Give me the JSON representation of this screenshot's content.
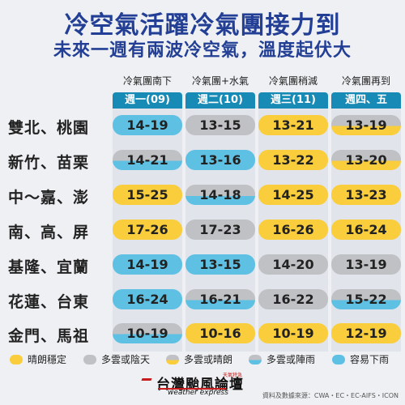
{
  "title": "冷空氣活躍冷氣團接力到",
  "subtitle": "未來一週有兩波冷空氣，溫度起伏大",
  "columns": [
    {
      "phase": "冷氣團南下",
      "day": "週一(09)"
    },
    {
      "phase": "冷氣團+水氣",
      "day": "週二(10)"
    },
    {
      "phase": "冷氣團稍減",
      "day": "週三(11)"
    },
    {
      "phase": "冷氣團再到",
      "day": "週四、五"
    }
  ],
  "rows": [
    {
      "location": "雙北、桃園",
      "cells": [
        {
          "temp": "14-19",
          "weather": "rain_easy"
        },
        {
          "temp": "13-15",
          "weather": "cloudy_overcast"
        },
        {
          "temp": "13-21",
          "weather": "sunny"
        },
        {
          "temp": "13-19",
          "weather": "cloudy_sunny"
        }
      ]
    },
    {
      "location": "新竹、苗栗",
      "cells": [
        {
          "temp": "14-21",
          "weather": "cloudy_showers"
        },
        {
          "temp": "13-16",
          "weather": "rain_easy"
        },
        {
          "temp": "13-22",
          "weather": "sunny"
        },
        {
          "temp": "13-20",
          "weather": "cloudy_sunny"
        }
      ]
    },
    {
      "location": "中～嘉、澎",
      "cells": [
        {
          "temp": "15-25",
          "weather": "sunny"
        },
        {
          "temp": "14-18",
          "weather": "cloudy_showers"
        },
        {
          "temp": "14-25",
          "weather": "sunny"
        },
        {
          "temp": "13-23",
          "weather": "sunny"
        }
      ]
    },
    {
      "location": "南、高、屏",
      "cells": [
        {
          "temp": "17-26",
          "weather": "sunny"
        },
        {
          "temp": "17-23",
          "weather": "cloudy_overcast"
        },
        {
          "temp": "16-26",
          "weather": "sunny"
        },
        {
          "temp": "16-24",
          "weather": "sunny"
        }
      ]
    },
    {
      "location": "基隆、宜蘭",
      "cells": [
        {
          "temp": "14-19",
          "weather": "rain_easy"
        },
        {
          "temp": "13-15",
          "weather": "rain_easy"
        },
        {
          "temp": "14-20",
          "weather": "cloudy_overcast"
        },
        {
          "temp": "13-19",
          "weather": "cloudy_overcast"
        }
      ]
    },
    {
      "location": "花蓮、台東",
      "cells": [
        {
          "temp": "16-24",
          "weather": "rain_easy"
        },
        {
          "temp": "16-21",
          "weather": "cloudy_showers"
        },
        {
          "temp": "16-22",
          "weather": "cloudy_overcast"
        },
        {
          "temp": "15-22",
          "weather": "cloudy_showers"
        }
      ]
    },
    {
      "location": "金門、馬祖",
      "cells": [
        {
          "temp": "10-19",
          "weather": "cloudy_showers"
        },
        {
          "temp": "10-16",
          "weather": "sunny"
        },
        {
          "temp": "10-19",
          "weather": "sunny"
        },
        {
          "temp": "12-19",
          "weather": "sunny"
        }
      ]
    }
  ],
  "legend": [
    {
      "key": "sunny",
      "label": "晴朗穩定"
    },
    {
      "key": "cloudy_overcast",
      "label": "多雲或陰天"
    },
    {
      "key": "cloudy_sunny",
      "label": "多雲或晴朗"
    },
    {
      "key": "cloudy_showers",
      "label": "多雲或陣雨"
    },
    {
      "key": "rain_easy",
      "label": "容易下雨"
    }
  ],
  "colors": {
    "title": "#233f95",
    "tab": "#178ab5",
    "sunny": "#f9cd3b",
    "gray": "#bfc1c4",
    "blue": "#5ec1e4",
    "brand_red": "#c91c1c"
  },
  "brand": {
    "name_cn": "台灣颱風論壇",
    "name_en": "weather express",
    "tag": "天氣特急"
  },
  "source": "資料及數據來源：CWA・EC・EC-AIFS・ICON"
}
